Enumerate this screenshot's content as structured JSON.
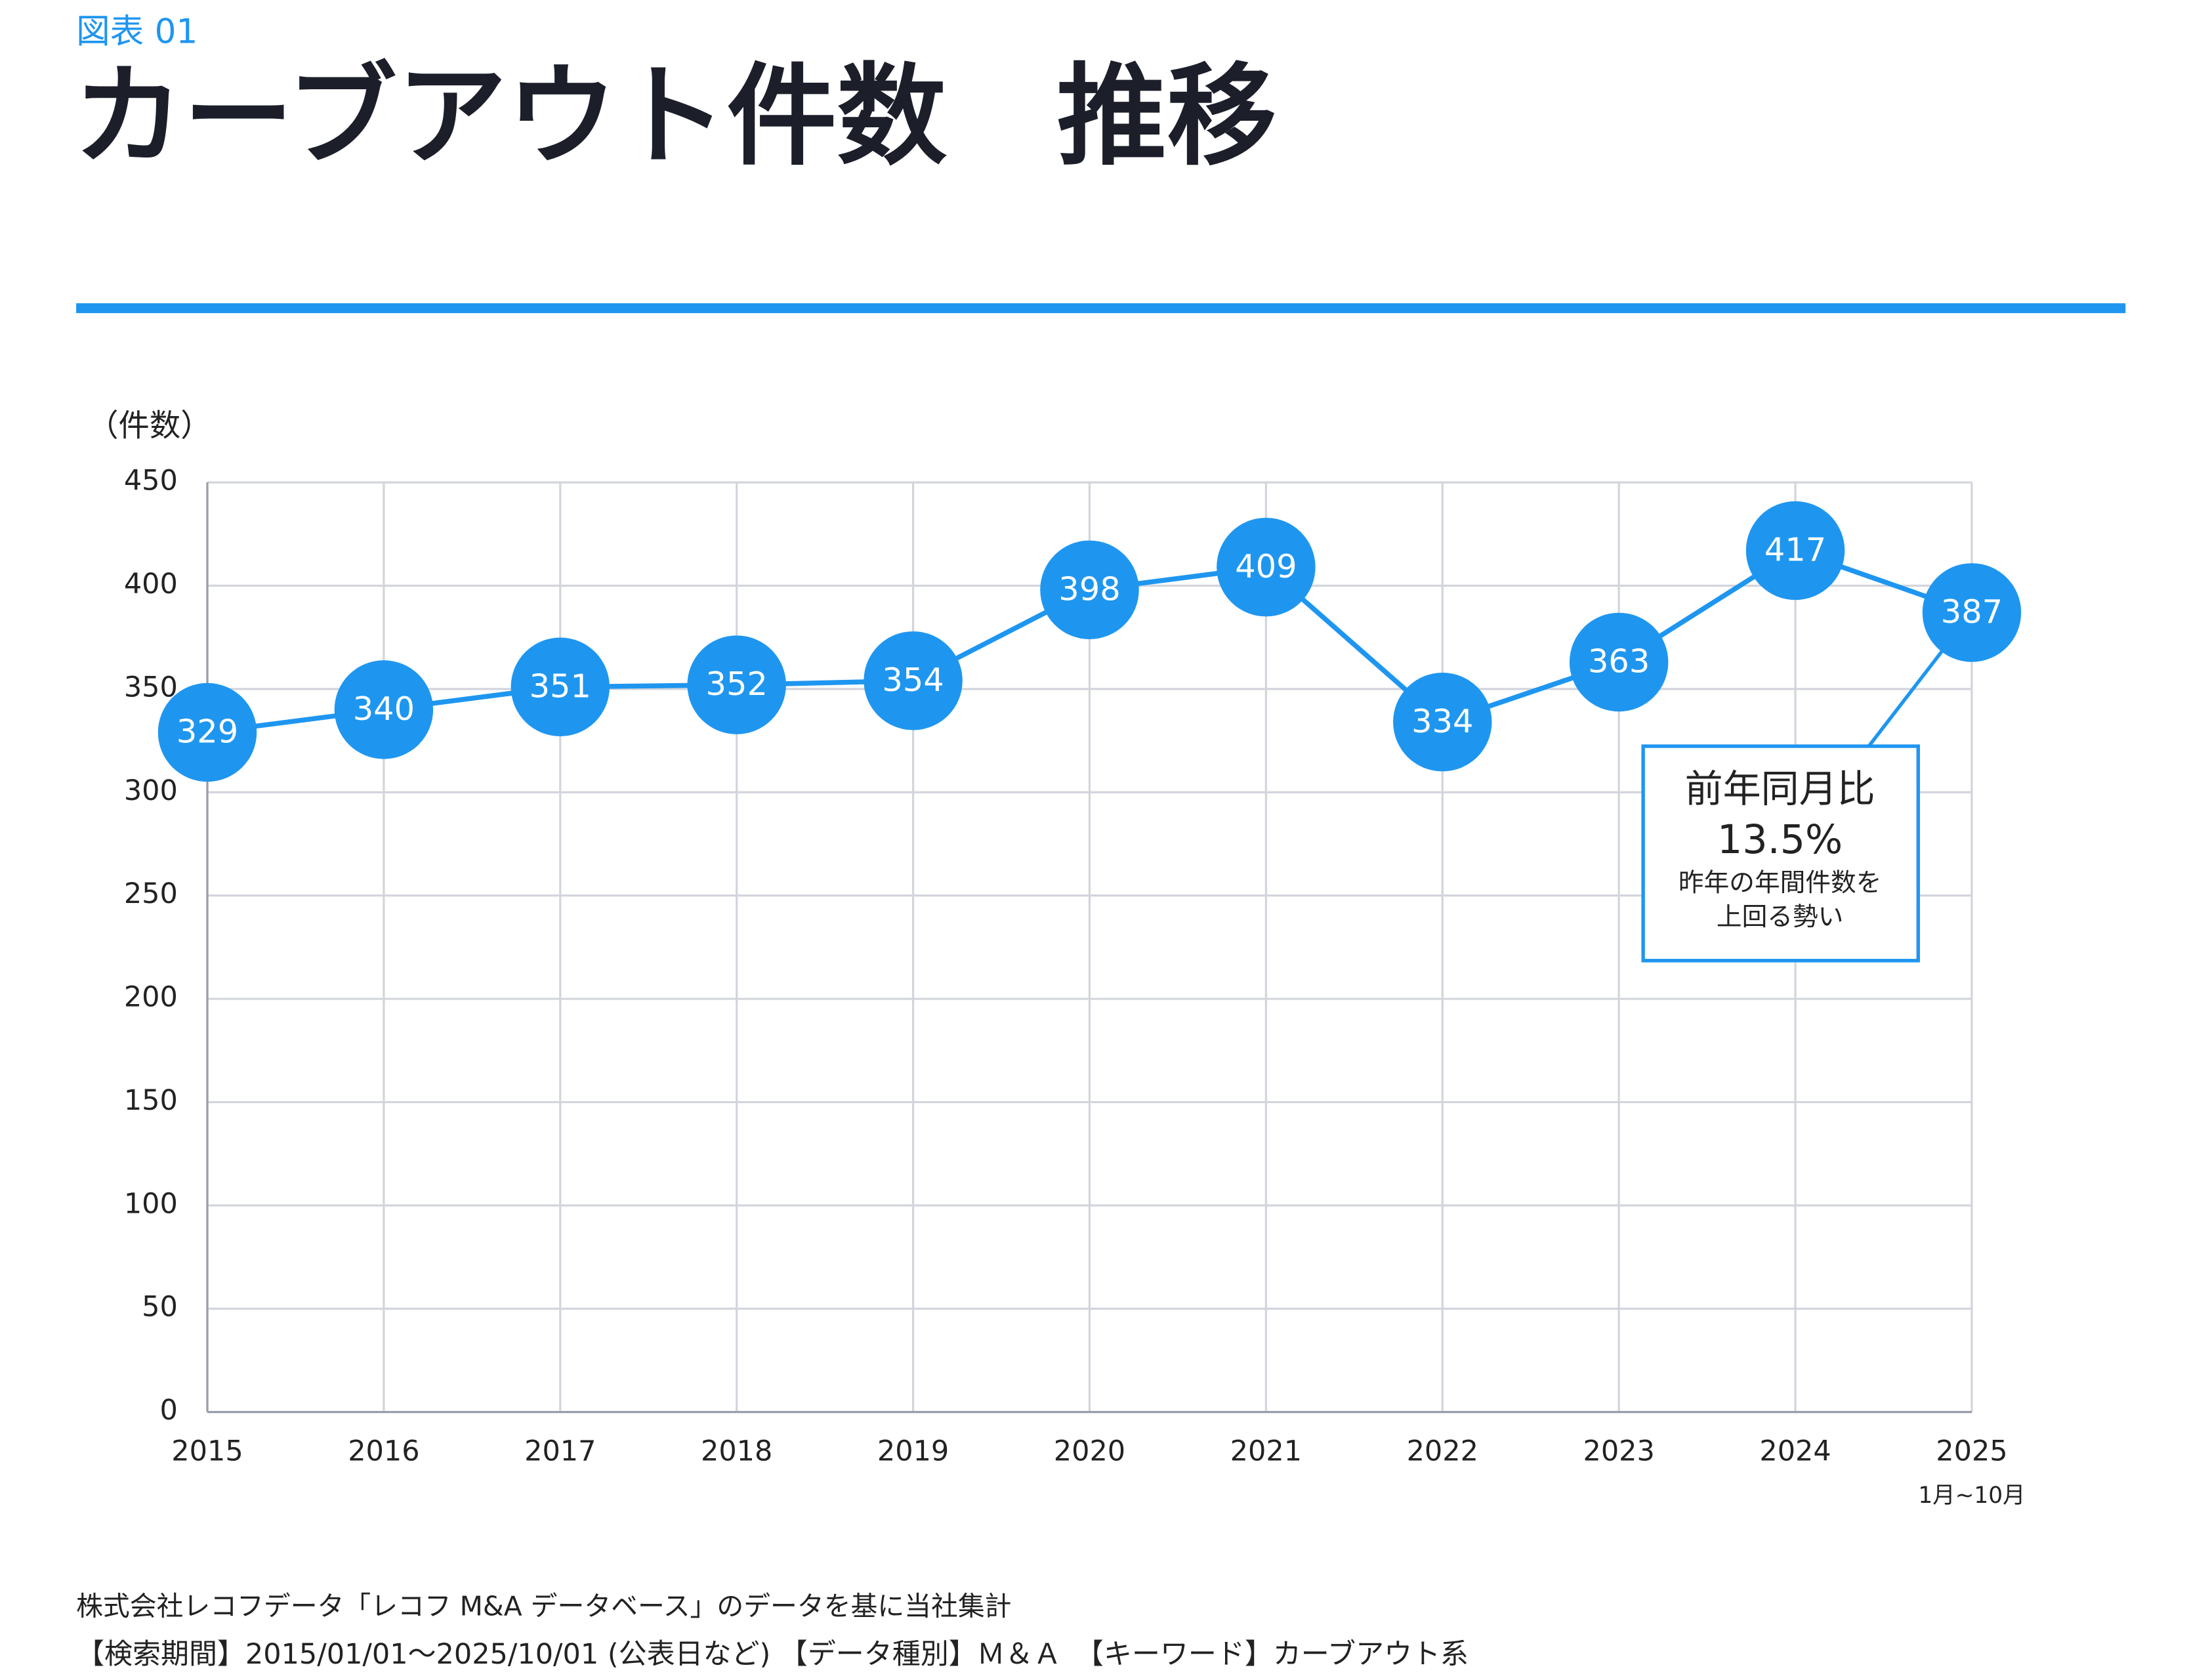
{
  "label": "図表 01",
  "chart_data": {
    "type": "line",
    "title": "カーブアウト件数　推移",
    "y_label": "（件数）",
    "categories": [
      "2015",
      "2016",
      "2017",
      "2018",
      "2019",
      "2020",
      "2021",
      "2022",
      "2023",
      "2024",
      "2025"
    ],
    "category_note": "1月~10月",
    "series": [
      {
        "name": "カーブアウト件数",
        "color": "#1e96f0",
        "values": [
          329,
          340,
          351,
          352,
          354,
          398,
          409,
          334,
          363,
          417,
          387
        ]
      }
    ],
    "ylim": [
      0,
      450
    ],
    "yticks": [
      0,
      50,
      100,
      150,
      200,
      250,
      300,
      350,
      400,
      450
    ],
    "grid": true,
    "callout": {
      "title": "前年同月比",
      "value": "13.5%",
      "lines": [
        "昨年の年間件数を",
        "上回る勢い"
      ]
    }
  },
  "footer": {
    "source": "株式会社レコフデータ「レコフ M&A データベース」のデータを基に当社集計",
    "conditions": "【検索期間】2015/01/01～2025/10/01 (公表日など)  【データ種別】Ｍ＆Ａ　【キーワード】カーブアウト系"
  }
}
